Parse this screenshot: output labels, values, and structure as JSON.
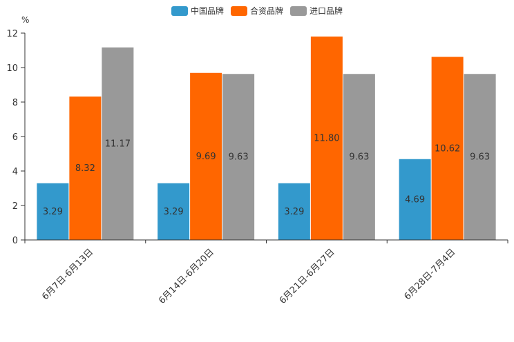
{
  "chart_data": {
    "type": "bar",
    "title": "",
    "xlabel": "",
    "ylabel": "%",
    "ylim": [
      0,
      12
    ],
    "yticks": [
      0,
      2,
      4,
      6,
      8,
      10,
      12
    ],
    "categories": [
      "6月7日-6月13日",
      "6月14日-6月20日",
      "6月21日-6月27日",
      "6月28日-7月4日"
    ],
    "series": [
      {
        "name": "中国品牌",
        "color": "#3399cc",
        "values": [
          3.29,
          3.29,
          3.29,
          4.69
        ],
        "labels": [
          "3.29",
          "3.29",
          "3.29",
          "4.69"
        ]
      },
      {
        "name": "合资品牌",
        "color": "#ff6600",
        "values": [
          8.32,
          9.69,
          11.8,
          10.62
        ],
        "labels": [
          "8.32",
          "9.69",
          "11.80",
          "10.62"
        ]
      },
      {
        "name": "进口品牌",
        "color": "#999999",
        "values": [
          11.17,
          9.63,
          9.63,
          9.63
        ],
        "labels": [
          "11.17",
          "9.63",
          "9.63",
          "9.63"
        ]
      }
    ],
    "legend_position": "top-center",
    "grid": false
  }
}
